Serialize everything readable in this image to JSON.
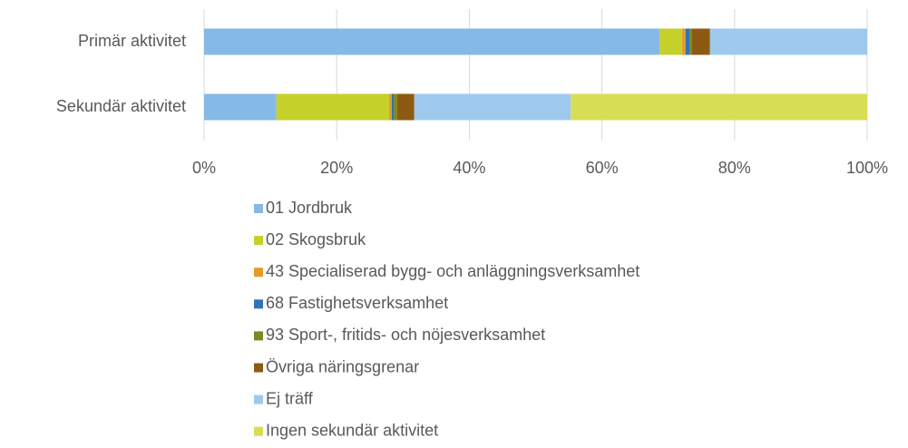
{
  "chart_data": {
    "type": "stacked-barh",
    "categories": [
      "Primär aktivitet",
      "Sekundär aktivitet"
    ],
    "series": [
      {
        "name": "01 Jordbruk",
        "color": "#85b9e6",
        "values": [
          68.7,
          10.9
        ]
      },
      {
        "name": "02 Skogsbruk",
        "color": "#c5d12a",
        "values": [
          3.4,
          17.0
        ]
      },
      {
        "name": "43 Specialiserad bygg- och anläggningsverksamhet",
        "color": "#e49b2a",
        "values": [
          0.5,
          0.4
        ]
      },
      {
        "name": "68 Fastighetsverksamhet",
        "color": "#2e75b6",
        "values": [
          0.6,
          0.3
        ]
      },
      {
        "name": "93 Sport-, fritids- och nöjesverksamhet",
        "color": "#7a8a1e",
        "values": [
          0.4,
          0.5
        ]
      },
      {
        "name": "Övriga näringsgrenar",
        "color": "#8c5a13",
        "values": [
          2.7,
          2.6
        ]
      },
      {
        "name": "Ej träff",
        "color": "#9fc9ec",
        "values": [
          23.7,
          23.6
        ]
      },
      {
        "name": "Ingen sekundär aktivitet",
        "color": "#d7de55",
        "values": [
          0,
          44.7
        ]
      }
    ],
    "xlim": [
      0,
      100
    ],
    "xticks": [
      {
        "value": 0,
        "label": "0%"
      },
      {
        "value": 20,
        "label": "20%"
      },
      {
        "value": 40,
        "label": "40%"
      },
      {
        "value": 60,
        "label": "60%"
      },
      {
        "value": 80,
        "label": "80%"
      },
      {
        "value": 100,
        "label": "100%"
      }
    ],
    "grid": true
  }
}
